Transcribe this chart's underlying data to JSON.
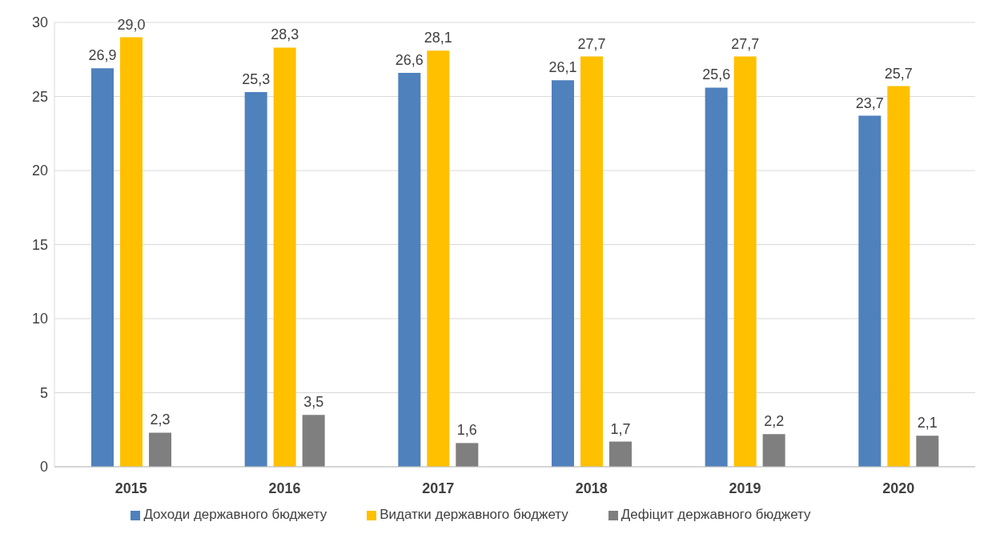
{
  "chart_data": {
    "type": "bar",
    "categories": [
      "2015",
      "2016",
      "2017",
      "2018",
      "2019",
      "2020"
    ],
    "series": [
      {
        "name": "Доходи державного бюджету",
        "color": "#4f81bd",
        "values": [
          26.9,
          25.3,
          26.6,
          26.1,
          25.6,
          23.7
        ],
        "value_labels": [
          "26,9",
          "25,3",
          "26,6",
          "26,1",
          "25,6",
          "23,7"
        ]
      },
      {
        "name": "Видатки державного бюджету",
        "color": "#ffc000",
        "values": [
          29.0,
          28.3,
          28.1,
          27.7,
          27.7,
          25.7
        ],
        "value_labels": [
          "29,0",
          "28,3",
          "28,1",
          "27,7",
          "27,7",
          "25,7"
        ]
      },
      {
        "name": "Дефіцит державного бюджету",
        "color": "#7f7f7f",
        "values": [
          2.3,
          3.5,
          1.6,
          1.7,
          2.2,
          2.1
        ],
        "value_labels": [
          "2,3",
          "3,5",
          "1,6",
          "1,7",
          "2,2",
          "2,1"
        ]
      }
    ],
    "ylim": [
      0,
      30
    ],
    "yticks": [
      0,
      5,
      10,
      15,
      20,
      25,
      30
    ],
    "grid": "y",
    "legend": "bottom"
  }
}
